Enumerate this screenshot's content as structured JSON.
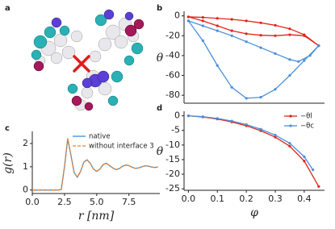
{
  "image_panel": {
    "panel": "a"
  },
  "chart_data": [
    {
      "type": "line",
      "panel": "b",
      "ylabel": "θ",
      "marker": true,
      "xlim": [
        -0.015,
        0.47
      ],
      "ylim": [
        -88,
        3
      ],
      "yticks": [
        0,
        -20,
        -40,
        -60,
        -80
      ],
      "series": [
        {
          "color": "#e0241b",
          "x": [
            0,
            0.05,
            0.1,
            0.15,
            0.2,
            0.25,
            0.3,
            0.35,
            0.4,
            0.45
          ],
          "values": [
            -1,
            -1.5,
            -2.5,
            -3.5,
            -5,
            -7,
            -9.5,
            -13,
            -19,
            -30
          ]
        },
        {
          "color": "#e0241b",
          "x": [
            0,
            0.05,
            0.1,
            0.15,
            0.2,
            0.25,
            0.3,
            0.35,
            0.4,
            0.45
          ],
          "values": [
            -1,
            -5,
            -10,
            -15,
            -18,
            -19.5,
            -20,
            -19,
            -20,
            -30
          ]
        },
        {
          "color": "#4a90d9",
          "x": [
            0,
            0.05,
            0.1,
            0.15,
            0.2,
            0.25,
            0.3,
            0.35,
            0.38,
            0.42,
            0.45
          ],
          "values": [
            -5,
            -10,
            -15,
            -20,
            -26,
            -32,
            -38,
            -44,
            -46,
            -40,
            -30
          ]
        },
        {
          "color": "#4a90d9",
          "x": [
            0,
            0.05,
            0.1,
            0.15,
            0.2,
            0.25,
            0.3,
            0.35,
            0.4,
            0.45
          ],
          "values": [
            -5,
            -25,
            -50,
            -72,
            -83,
            -82,
            -74,
            -60,
            -45,
            -30
          ]
        }
      ]
    },
    {
      "type": "line",
      "panel": "c",
      "ylabel": "g(r)",
      "xlabel": "r [nm]",
      "marker": false,
      "xlim": [
        0,
        9.9
      ],
      "ylim": [
        -0.15,
        2.45
      ],
      "xticks": [
        {
          "value": 0,
          "label": "0.0"
        },
        {
          "value": 2.5,
          "label": "2.5"
        },
        {
          "value": 5,
          "label": "5.0"
        },
        {
          "value": 7.5,
          "label": "7.5"
        }
      ],
      "yticks": [
        0,
        1,
        2
      ],
      "x": [
        0,
        0.25,
        0.5,
        0.75,
        1,
        1.25,
        1.5,
        1.75,
        2,
        2.25,
        2.5,
        2.75,
        3,
        3.25,
        3.5,
        3.75,
        4,
        4.25,
        4.5,
        4.75,
        5,
        5.25,
        5.5,
        5.75,
        6,
        6.25,
        6.5,
        6.75,
        7,
        7.25,
        7.5,
        7.75,
        8,
        8.25,
        8.5,
        8.75,
        9,
        9.25,
        9.5,
        9.75
      ],
      "series": [
        {
          "name": "native",
          "color": "#3b8fd4",
          "values": [
            0,
            0,
            0,
            0,
            0,
            0,
            0,
            0,
            0,
            0.02,
            1.0,
            2.2,
            1.5,
            0.75,
            0.55,
            0.8,
            1.2,
            1.3,
            1.15,
            0.9,
            0.8,
            0.9,
            1.1,
            1.15,
            1.05,
            0.95,
            0.88,
            0.92,
            1.02,
            1.08,
            1.05,
            0.98,
            0.93,
            0.95,
            1.0,
            1.04,
            1.03,
            0.99,
            0.97,
            0.99
          ]
        },
        {
          "name": "without interface 3",
          "color": "#f07f2a",
          "dash": true,
          "values": [
            0,
            0,
            0,
            0,
            0,
            0,
            0,
            0,
            0,
            0.02,
            1.0,
            2.22,
            1.5,
            0.75,
            0.56,
            0.8,
            1.2,
            1.29,
            1.15,
            0.9,
            0.81,
            0.9,
            1.1,
            1.14,
            1.05,
            0.95,
            0.88,
            0.92,
            1.02,
            1.07,
            1.05,
            0.98,
            0.93,
            0.95,
            1.0,
            1.04,
            1.03,
            0.99,
            0.97,
            0.99
          ]
        }
      ]
    },
    {
      "type": "line",
      "panel": "d",
      "ylabel": "θ",
      "xlabel": "φ",
      "marker": true,
      "xlim": [
        -0.015,
        0.47
      ],
      "ylim": [
        -25.5,
        1
      ],
      "xticks": [
        {
          "value": 0,
          "label": "0.0"
        },
        {
          "value": 0.1,
          "label": "0.1"
        },
        {
          "value": 0.2,
          "label": "0.2"
        },
        {
          "value": 0.3,
          "label": "0.3"
        },
        {
          "value": 0.4,
          "label": "0.4"
        }
      ],
      "yticks": [
        0,
        -5,
        -10,
        -15,
        -20,
        -25
      ],
      "series": [
        {
          "name": "−θl",
          "color": "#e0241b",
          "x": [
            0,
            0.05,
            0.1,
            0.15,
            0.2,
            0.25,
            0.3,
            0.35,
            0.4,
            0.45
          ],
          "values": [
            0,
            -0.4,
            -1.1,
            -2.1,
            -3.4,
            -5.1,
            -7.3,
            -10.4,
            -15.5,
            -24.2
          ]
        },
        {
          "name": "−θc",
          "color": "#4a90d9",
          "x": [
            0,
            0.05,
            0.1,
            0.15,
            0.2,
            0.25,
            0.3,
            0.35,
            0.4,
            0.43
          ],
          "values": [
            0,
            -0.3,
            -0.9,
            -1.8,
            -3,
            -4.6,
            -6.6,
            -9.4,
            -14,
            -18.5
          ]
        }
      ]
    }
  ]
}
